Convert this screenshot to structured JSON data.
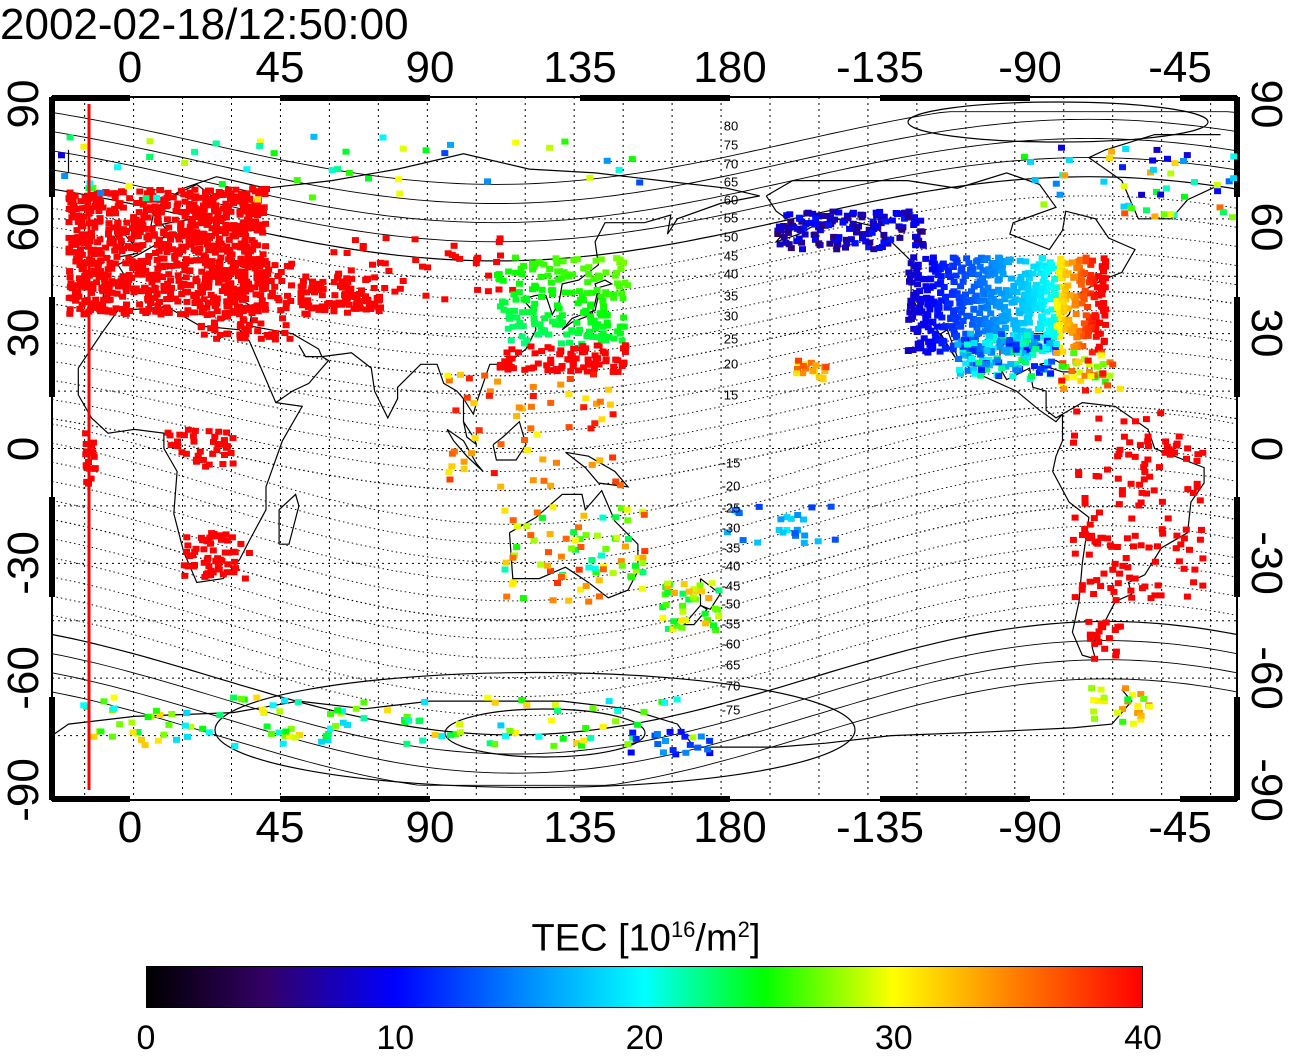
{
  "timestamp": "2002-02-18/12:50:00",
  "map": {
    "lon_ticks": [
      "0",
      "45",
      "90",
      "135",
      "180",
      "-135",
      "-90",
      "-45"
    ],
    "lat_ticks": [
      "90",
      "60",
      "30",
      "0",
      "-30",
      "-60",
      "-90"
    ],
    "contour_labels": [
      "80",
      "75",
      "70",
      "65",
      "60",
      "55",
      "50",
      "45",
      "40",
      "35",
      "30",
      "25",
      "20",
      "15",
      "-15",
      "-20",
      "-25",
      "-30",
      "-35",
      "-40",
      "-45",
      "-50",
      "-55",
      "-60",
      "-65",
      "-70",
      "-75"
    ],
    "sample_longitude": -15
  },
  "colorbar": {
    "title_prefix": "TEC  [10",
    "title_exp": "16",
    "title_mid": "/m",
    "title_exp2": "2",
    "title_suffix": "]",
    "ticks": [
      "0",
      "10",
      "20",
      "30",
      "40"
    ],
    "min": 0,
    "max": 40
  },
  "colors": {
    "high_tec": "#ff0000",
    "low_tec": "#0000ff"
  }
}
